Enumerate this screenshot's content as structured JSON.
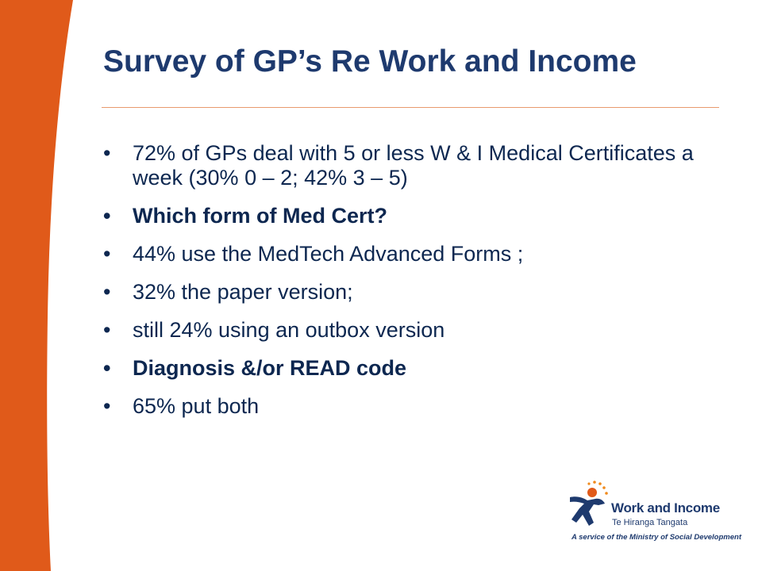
{
  "slide": {
    "title": "Survey of GP’s Re Work and Income",
    "accent_color": "#e05a1a",
    "title_color": "#1e3a6e",
    "bullet_marker": "•",
    "bullets": [
      {
        "text": "72% of GPs deal with 5 or less W & I Medical Certificates a week (30% 0 – 2; 42% 3 – 5)",
        "bold": false
      },
      {
        "text": "Which form of Med Cert?",
        "bold": true
      },
      {
        "text": "44% use the MedTech Advanced Forms ;",
        "bold": false
      },
      {
        "text": "32% the paper version;",
        "bold": false
      },
      {
        "text": "still 24% using an outbox version",
        "bold": false
      },
      {
        "text": "Diagnosis &/or READ code",
        "bold": true
      },
      {
        "text": "65% put both",
        "bold": false
      }
    ]
  },
  "logo": {
    "name": "Work and Income",
    "subtitle": "Te Hiranga Tangata",
    "tagline": "A service of the Ministry of Social Development"
  }
}
